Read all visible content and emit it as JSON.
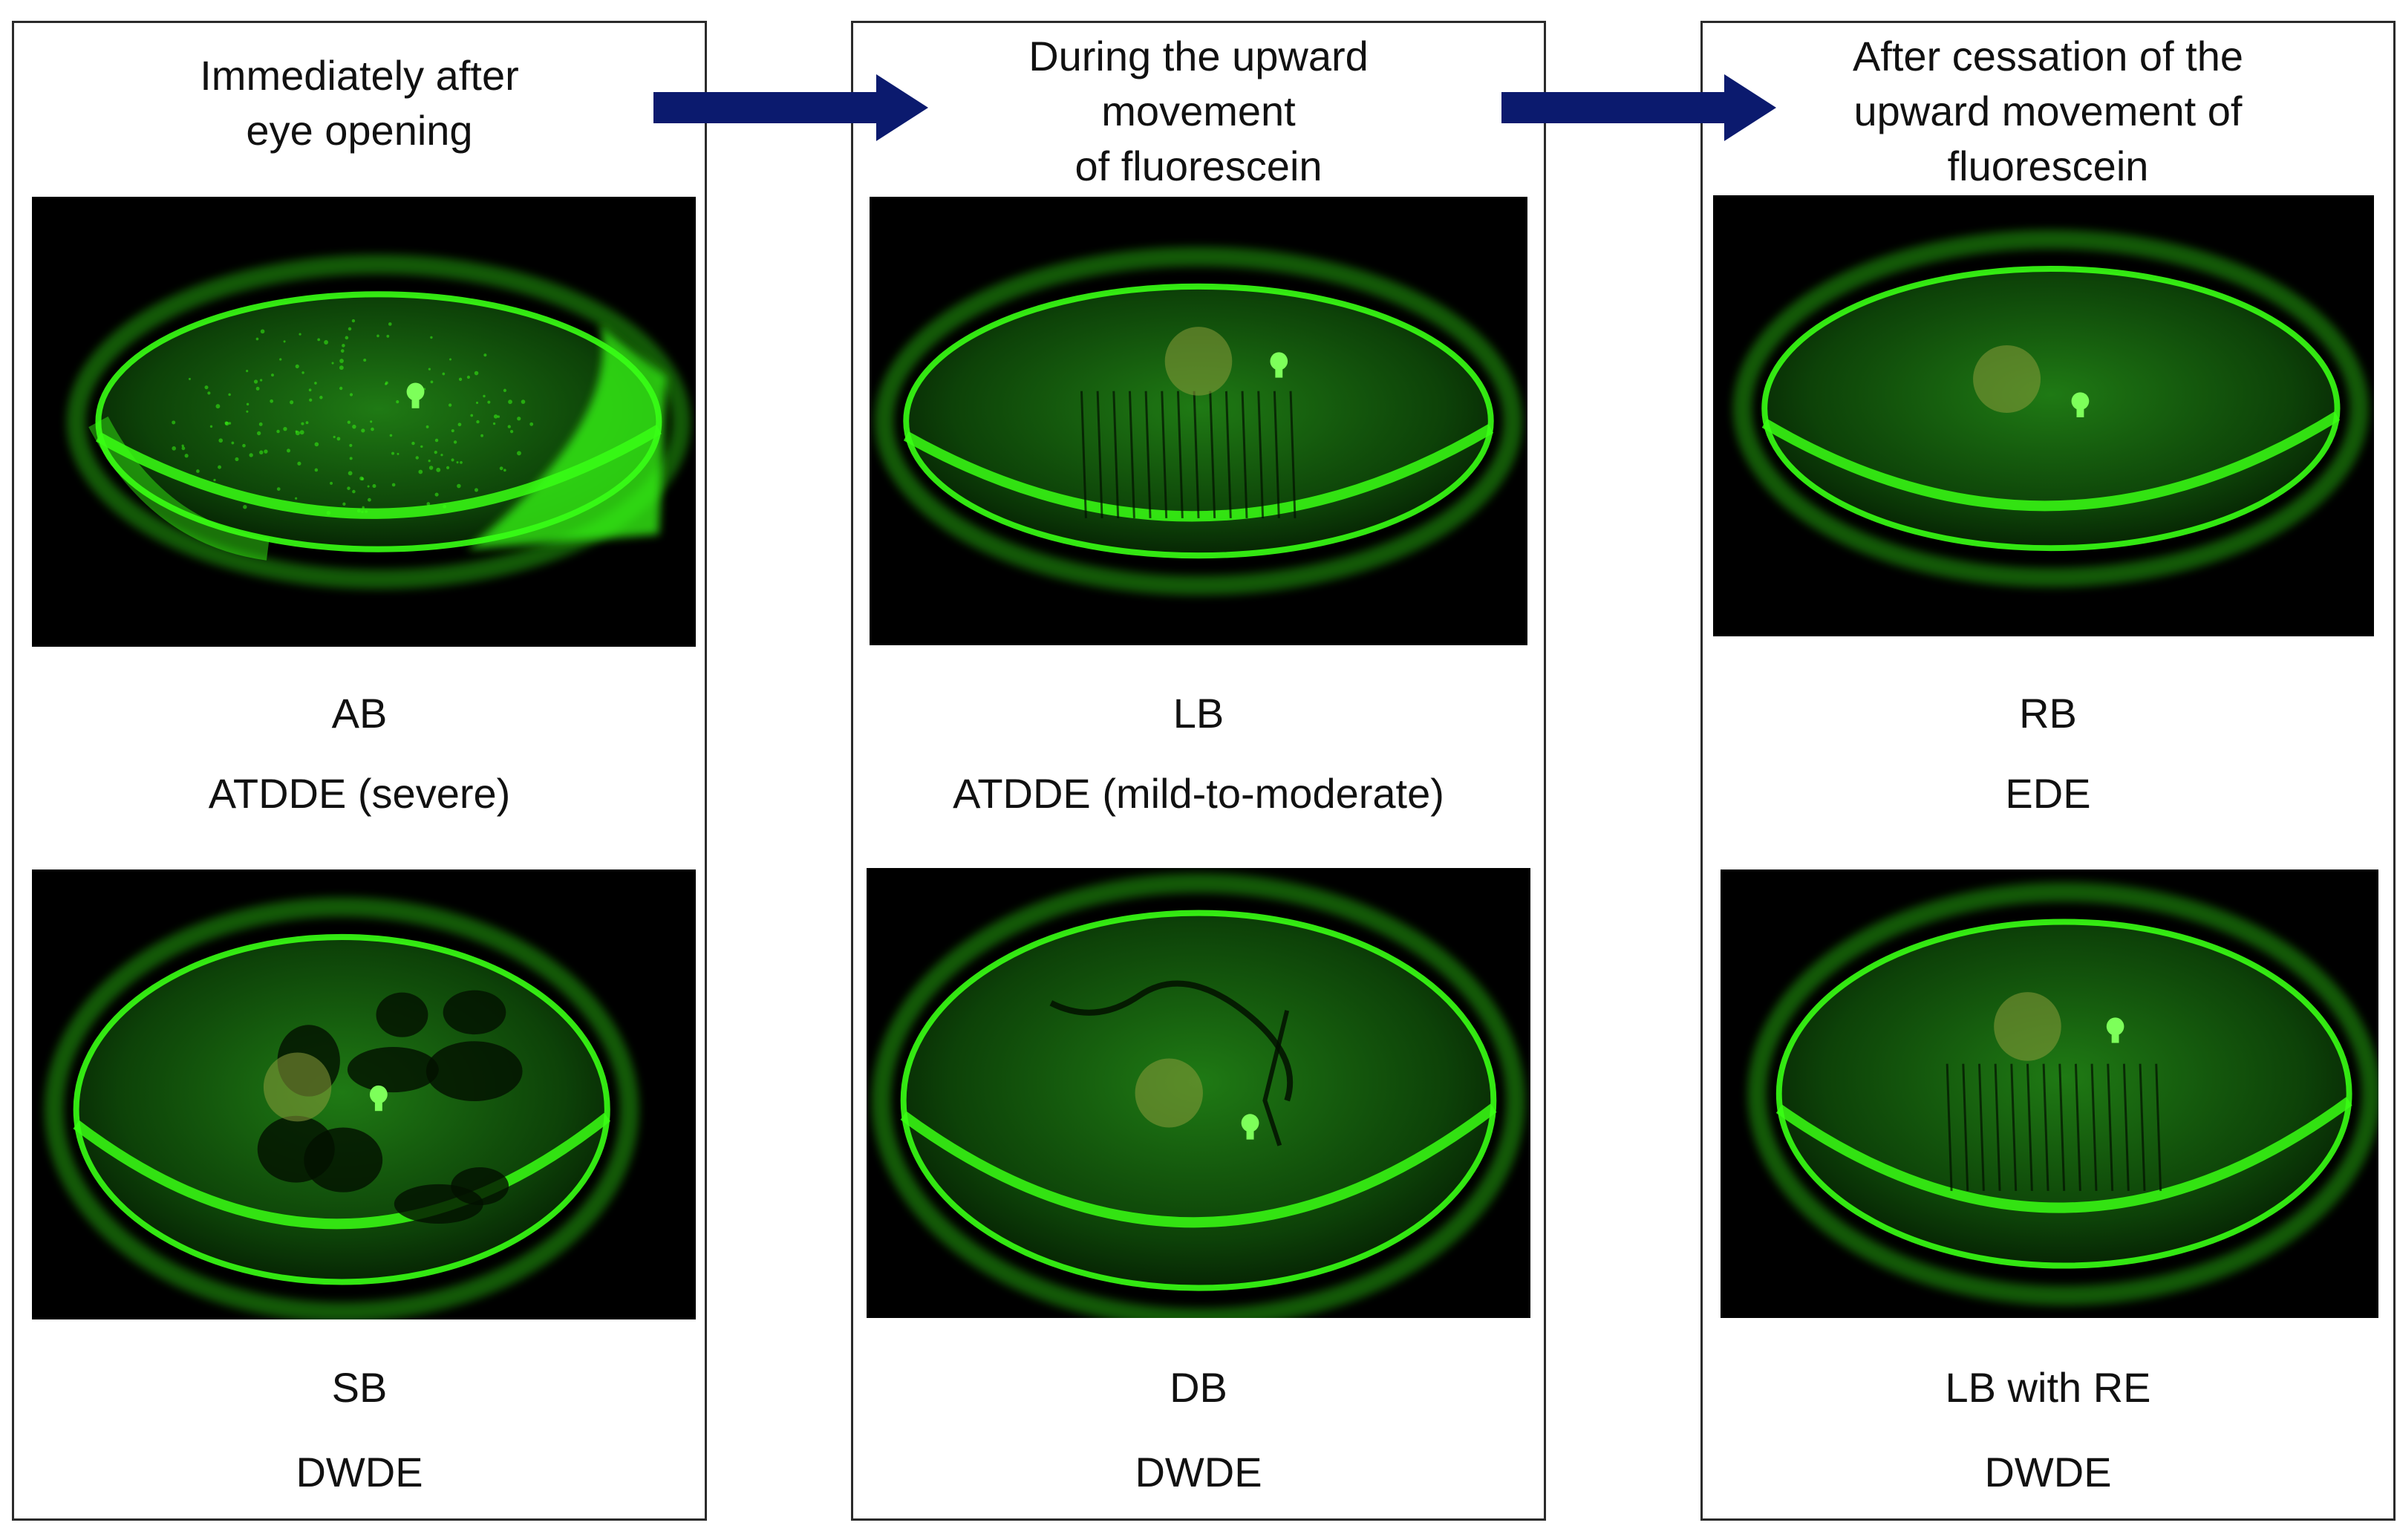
{
  "columns": [
    {
      "heading": [
        "Immediately after",
        "eye opening"
      ],
      "rows": [
        {
          "label1": "AB",
          "label2": "ATDDE (severe)",
          "image": "eye-photo-area-break"
        },
        {
          "label1": "SB",
          "label2": "DWDE",
          "image": "eye-photo-spot-break"
        }
      ]
    },
    {
      "heading": [
        "During the upward",
        "movement",
        "of fluorescein"
      ],
      "rows": [
        {
          "label1": "LB",
          "label2": "ATDDE (mild-to-moderate)",
          "image": "eye-photo-line-break"
        },
        {
          "label1": "DB",
          "label2": "DWDE",
          "image": "eye-photo-dimple-break"
        }
      ]
    },
    {
      "heading": [
        "After cessation of the",
        "upward movement of",
        "fluorescein"
      ],
      "rows": [
        {
          "label1": "RB",
          "label2": "EDE",
          "image": "eye-photo-random-break"
        },
        {
          "label1": "LB with RE",
          "label2": "DWDE",
          "image": "eye-photo-line-break-with-rapid-expansion"
        }
      ]
    }
  ],
  "colors": {
    "arrow": "#0b1a6e",
    "fluorescein": "#39ff14",
    "frame": "#2b2b2b"
  }
}
